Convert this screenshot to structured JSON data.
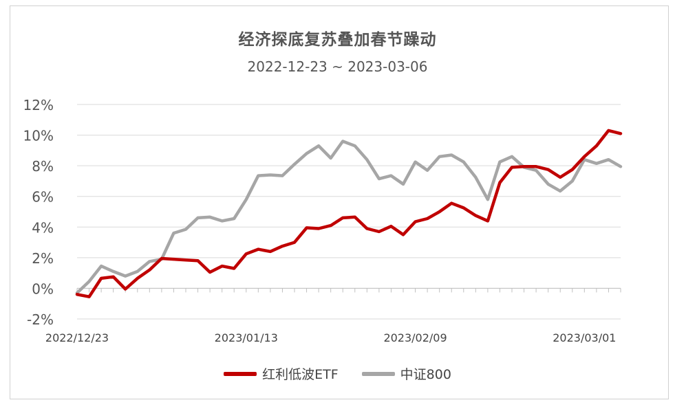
{
  "chart_data": {
    "type": "line",
    "title": "经济探底复苏叠加春节躁动",
    "subtitle": "2022-12-23 ~ 2023-03-06",
    "ylim": [
      -2,
      12
    ],
    "ytick_labels": [
      "12%",
      "10%",
      "8%",
      "6%",
      "4%",
      "2%",
      "0%",
      "-2%"
    ],
    "ytick_values": [
      12,
      10,
      8,
      6,
      4,
      2,
      0,
      -2
    ],
    "xtick_labels": [
      "2022/12/23",
      "2023/01/13",
      "2023/02/09",
      "2023/03/01"
    ],
    "xtick_indices": [
      0,
      14,
      28,
      42
    ],
    "grid": true,
    "legend": "bottom",
    "series": [
      {
        "name": "红利低波ETF",
        "color": "#c00000",
        "values": [
          -0.4,
          -0.55,
          0.65,
          0.75,
          -0.05,
          0.65,
          1.2,
          1.95,
          1.9,
          1.85,
          1.8,
          1.05,
          1.45,
          1.3,
          2.25,
          2.55,
          2.4,
          2.75,
          3.0,
          3.95,
          3.9,
          4.1,
          4.6,
          4.65,
          3.9,
          3.7,
          4.05,
          3.5,
          4.35,
          4.55,
          5.0,
          5.55,
          5.25,
          4.75,
          4.4,
          6.9,
          7.9,
          7.95,
          7.95,
          7.75,
          7.25,
          7.75,
          8.6,
          9.3,
          10.3,
          10.1
        ]
      },
      {
        "name": "中证800",
        "color": "#a6a6a6",
        "values": [
          -0.3,
          0.45,
          1.45,
          1.1,
          0.8,
          1.1,
          1.75,
          1.9,
          3.6,
          3.85,
          4.6,
          4.65,
          4.4,
          4.55,
          5.8,
          7.35,
          7.4,
          7.35,
          8.1,
          8.8,
          9.3,
          8.5,
          9.6,
          9.3,
          8.4,
          7.15,
          7.35,
          6.8,
          8.25,
          7.7,
          8.6,
          8.7,
          8.25,
          7.25,
          5.8,
          8.25,
          8.6,
          7.9,
          7.7,
          6.8,
          6.35,
          7.0,
          8.4,
          8.15,
          8.4,
          7.95
        ]
      }
    ]
  }
}
